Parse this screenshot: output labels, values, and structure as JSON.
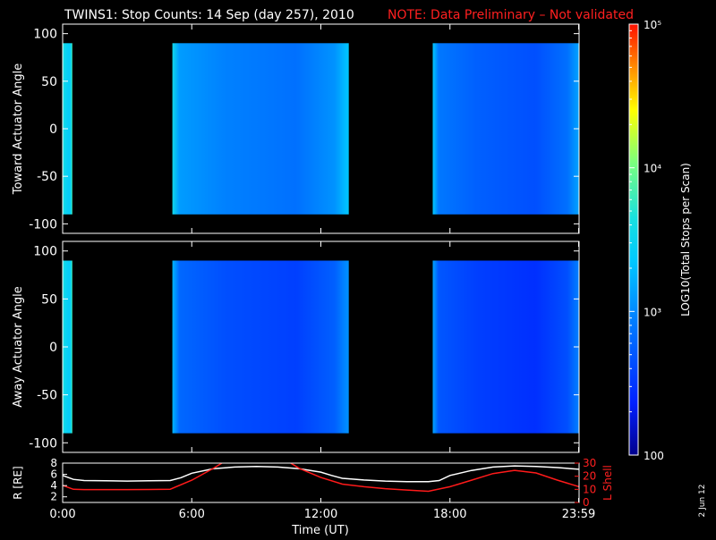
{
  "title": {
    "main": "TWINS1: Stop Counts: 14 Sep (day 257), 2010",
    "note": "NOTE: Data Preliminary – Not validated",
    "note_color": "#ff2020"
  },
  "footer_date": "2 Jun 12",
  "chart_data": [
    {
      "type": "heatmap",
      "name": "toward",
      "ylabel": "Toward Actuator Angle",
      "ylim": [
        -110,
        110
      ],
      "yticks": [
        {
          "v": 100,
          "t": "100"
        },
        {
          "v": 50,
          "t": "50"
        },
        {
          "v": 0,
          "t": "0"
        },
        {
          "v": -50,
          "t": "-50"
        },
        {
          "v": -100,
          "t": "-100"
        }
      ],
      "data_angle_range": [
        -90,
        90
      ],
      "xlim_hours": [
        0,
        24
      ],
      "segments": [
        {
          "t0": 0.0,
          "t1": 0.45,
          "level": 3.55
        },
        {
          "t0": 5.1,
          "t1": 13.3,
          "level": 3.0
        },
        {
          "t0": 17.2,
          "t1": 24.0,
          "level": 2.8
        }
      ]
    },
    {
      "type": "heatmap",
      "name": "away",
      "ylabel": "Away Actuator Angle",
      "ylim": [
        -110,
        110
      ],
      "yticks": [
        {
          "v": 100,
          "t": "100"
        },
        {
          "v": 50,
          "t": "50"
        },
        {
          "v": 0,
          "t": "0"
        },
        {
          "v": -50,
          "t": "-50"
        },
        {
          "v": -100,
          "t": "-100"
        }
      ],
      "data_angle_range": [
        -90,
        90
      ],
      "xlim_hours": [
        0,
        24
      ],
      "segments": [
        {
          "t0": 0.0,
          "t1": 0.45,
          "level": 3.55
        },
        {
          "t0": 5.1,
          "t1": 13.3,
          "level": 2.7
        },
        {
          "t0": 17.2,
          "t1": 24.0,
          "level": 2.6
        }
      ]
    },
    {
      "type": "line",
      "name": "orbit",
      "ylabel": "R [RE]",
      "ylabel_right": "L Shell",
      "ylim": [
        1,
        8
      ],
      "yticks": [
        {
          "v": 8,
          "t": "8"
        },
        {
          "v": 6,
          "t": "6"
        },
        {
          "v": 4,
          "t": "4"
        },
        {
          "v": 2,
          "t": "2"
        }
      ],
      "ylim_right": [
        0,
        30
      ],
      "yticks_right": [
        {
          "v": 30,
          "t": "30"
        },
        {
          "v": 20,
          "t": "20"
        },
        {
          "v": 10,
          "t": "10"
        },
        {
          "v": 0,
          "t": "0"
        }
      ],
      "xlabel": "Time (UT)",
      "xticks": [
        {
          "v": 0,
          "t": "0:00"
        },
        {
          "v": 6,
          "t": "6:00"
        },
        {
          "v": 12,
          "t": "12:00"
        },
        {
          "v": 18,
          "t": "18:00"
        },
        {
          "v": 23.98,
          "t": "23:59"
        }
      ],
      "series": [
        {
          "name": "R",
          "color": "#ffffff",
          "x": [
            0,
            0.5,
            1,
            2,
            3,
            4,
            5,
            5.5,
            6,
            7,
            8,
            9,
            10,
            11,
            12,
            12.5,
            13,
            14,
            15,
            16,
            17,
            17.5,
            18,
            19,
            20,
            21,
            22,
            23,
            24
          ],
          "y": [
            5.8,
            5.1,
            4.9,
            4.85,
            4.8,
            4.85,
            4.9,
            5.4,
            6.2,
            7.0,
            7.3,
            7.4,
            7.3,
            7.0,
            6.4,
            5.8,
            5.3,
            5.0,
            4.8,
            4.7,
            4.7,
            4.9,
            5.8,
            6.7,
            7.3,
            7.5,
            7.4,
            7.2,
            6.9
          ]
        },
        {
          "name": "L Shell",
          "color": "#ff1a1a",
          "x": [
            0,
            0.5,
            1,
            2,
            3,
            4,
            5,
            6,
            7,
            7.5,
            10.5,
            11,
            12,
            13,
            14,
            15,
            16,
            17,
            18,
            19,
            20,
            21,
            22,
            23,
            24
          ],
          "y": [
            13,
            10,
            9.8,
            9.8,
            9.8,
            9.9,
            10.1,
            17,
            26,
            31,
            31,
            26,
            19,
            14,
            12,
            10.5,
            9.5,
            8.5,
            12,
            17,
            22,
            24.5,
            22.5,
            17,
            12
          ]
        }
      ]
    }
  ],
  "colorbar": {
    "label": "LOG10(Total Stops per Scan)",
    "min_log": 2,
    "max_log": 5,
    "ticks": [
      {
        "v": 5,
        "t": "10⁵"
      },
      {
        "v": 4,
        "t": "10⁴"
      },
      {
        "v": 3,
        "t": "10³"
      },
      {
        "v": 2,
        "t": "100"
      }
    ]
  }
}
